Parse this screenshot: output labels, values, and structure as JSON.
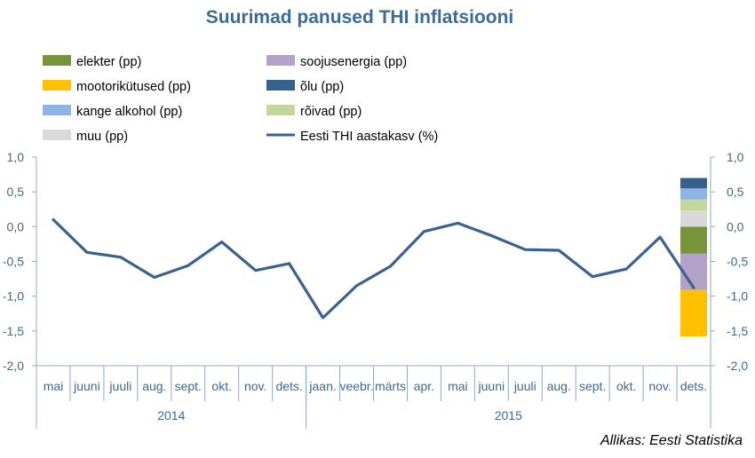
{
  "title": "Suurimad panused THI inflatsiooni",
  "source": "Allikas: Eesti Statistika",
  "chart_data": {
    "type": "line",
    "title": "Suurimad panused THI inflatsiooni",
    "ylim": [
      -2.0,
      1.0
    ],
    "y_ticks": [
      "1,0",
      "0,5",
      "0,0",
      "-0,5",
      "-1,0",
      "-1,5",
      "-2,0"
    ],
    "y_tick_values": [
      1.0,
      0.5,
      0.0,
      -0.5,
      -1.0,
      -1.5,
      -2.0
    ],
    "categories": [
      "mai",
      "juuni",
      "juuli",
      "aug.",
      "sept.",
      "okt.",
      "nov.",
      "dets.",
      "jaan.",
      "veebr.",
      "märts",
      "apr.",
      "mai",
      "juuni",
      "juuli",
      "aug.",
      "sept.",
      "okt.",
      "nov.",
      "dets."
    ],
    "years": [
      {
        "label": "2014",
        "start": 0,
        "end": 8
      },
      {
        "label": "2015",
        "start": 8,
        "end": 20
      }
    ],
    "line_series": {
      "name": "Eesti THI aastakasv (%)",
      "color": "#3B6190",
      "values": [
        0.1,
        -0.37,
        -0.44,
        -0.73,
        -0.56,
        -0.22,
        -0.63,
        -0.53,
        -1.31,
        -0.85,
        -0.57,
        -0.07,
        0.05,
        -0.13,
        -0.33,
        -0.34,
        -0.72,
        -0.61,
        -0.15,
        -0.88
      ]
    },
    "stacked_bar": {
      "category_index": 19,
      "segments": [
        {
          "name": "elekter (pp)",
          "value": -0.39,
          "color": "#77933C"
        },
        {
          "name": "soojusenergia (pp)",
          "value": -0.52,
          "color": "#B3A2C7"
        },
        {
          "name": "mootorikütused (pp)",
          "value": -0.67,
          "color": "#FFC000"
        },
        {
          "name": "muu (pp)",
          "value": 0.23,
          "color": "#D9D9D9"
        },
        {
          "name": "rõivad (pp)",
          "value": 0.16,
          "color": "#C3D69B"
        },
        {
          "name": "kange alkohol (pp)",
          "value": 0.16,
          "color": "#8EB4E3"
        },
        {
          "name": "õlu (pp)",
          "value": 0.15,
          "color": "#376092"
        }
      ]
    },
    "legend": [
      {
        "name": "elekter (pp)",
        "color": "#77933C",
        "kind": "box"
      },
      {
        "name": "soojusenergia (pp)",
        "color": "#B3A2C7",
        "kind": "box"
      },
      {
        "name": "mootorikütused (pp)",
        "color": "#FFC000",
        "kind": "box"
      },
      {
        "name": "õlu (pp)",
        "color": "#376092",
        "kind": "box"
      },
      {
        "name": "kange alkohol (pp)",
        "color": "#8EB4E3",
        "kind": "box"
      },
      {
        "name": "rõivad (pp)",
        "color": "#C3D69B",
        "kind": "box"
      },
      {
        "name": "muu (pp)",
        "color": "#D9D9D9",
        "kind": "box"
      },
      {
        "name": "Eesti THI aastakasv (%)",
        "color": "#3B6190",
        "kind": "line"
      }
    ],
    "legend_placement": "top",
    "grid": false
  }
}
